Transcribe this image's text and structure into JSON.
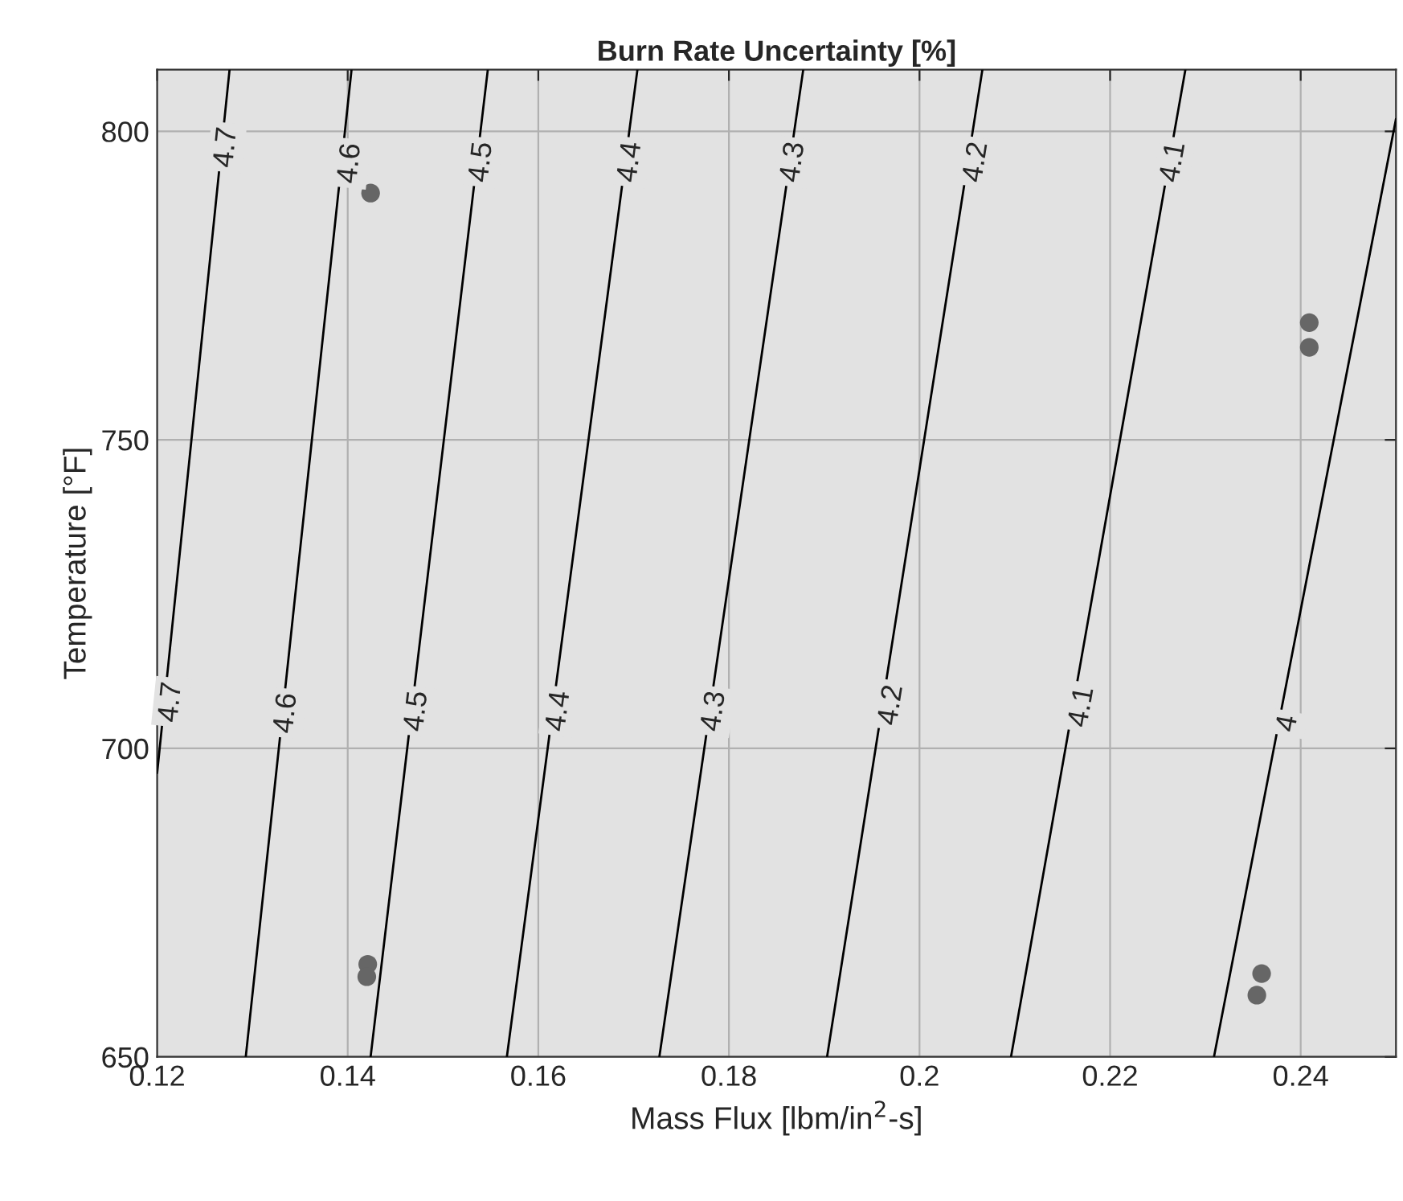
{
  "chart_data": {
    "type": "scatter",
    "title": "Burn Rate Uncertainty [%]",
    "xlabel": "Mass Flux [lbm/in$^{2}$-s]",
    "ylabel": "Temperature [°F]",
    "series": [
      {
        "type": "line",
        "color": "#000000",
        "x": [
          0.12,
          0.1276
        ],
        "values": [
          696,
          810
        ]
      },
      {
        "type": "line",
        "color": "#000000",
        "x": [
          0.1293,
          0.1404
        ],
        "values": [
          650,
          810
        ]
      },
      {
        "type": "line",
        "color": "#000000",
        "x": [
          0.1424,
          0.1547
        ],
        "values": [
          650,
          810
        ]
      },
      {
        "type": "line",
        "color": "#000000",
        "x": [
          0.1567,
          0.1704
        ],
        "values": [
          650,
          810
        ]
      },
      {
        "type": "line",
        "color": "#000000",
        "x": [
          0.1727,
          0.1878
        ],
        "values": [
          650,
          810
        ]
      },
      {
        "type": "line",
        "color": "#000000",
        "x": [
          0.1903,
          0.2066
        ],
        "values": [
          650,
          810
        ]
      },
      {
        "type": "line",
        "color": "#000000",
        "x": [
          0.2096,
          0.2279
        ],
        "values": [
          650,
          810
        ]
      },
      {
        "type": "line",
        "color": "#000000",
        "x": [
          0.2309,
          0.25
        ],
        "values": [
          650,
          802
        ]
      },
      {
        "marker": "circle",
        "color": "#666666",
        "x": [
          0.1424,
          0.1421,
          0.142,
          0.2409,
          0.2409,
          0.2359,
          0.2354
        ],
        "values": [
          790,
          665,
          663,
          769,
          765,
          663.5,
          660
        ]
      }
    ],
    "annotations": [
      {
        "text": "4.7",
        "x": 0.1273,
        "y": 797.4
      },
      {
        "text": "4.6",
        "x": 0.1403,
        "y": 794.8
      },
      {
        "text": "4.5",
        "x": 0.1541,
        "y": 795
      },
      {
        "text": "4.4",
        "x": 0.1697,
        "y": 795
      },
      {
        "text": "4.3",
        "x": 0.1868,
        "y": 795
      },
      {
        "text": "4.2",
        "x": 0.206,
        "y": 795
      },
      {
        "text": "4.1",
        "x": 0.2267,
        "y": 795
      },
      {
        "text": "4.7",
        "x": 0.1215,
        "y": 707.5
      },
      {
        "text": "4.6",
        "x": 0.1336,
        "y": 705.7
      },
      {
        "text": "4.5",
        "x": 0.1473,
        "y": 706
      },
      {
        "text": "4.4",
        "x": 0.1622,
        "y": 706
      },
      {
        "text": "4.3",
        "x": 0.1785,
        "y": 706
      },
      {
        "text": "4.2",
        "x": 0.1971,
        "y": 707
      },
      {
        "text": "4.1",
        "x": 0.2171,
        "y": 706.7
      },
      {
        "text": "4",
        "x": 0.2387,
        "y": 704
      }
    ],
    "xlim": [
      0.12,
      0.25
    ],
    "ylim": [
      650,
      810
    ],
    "xticks": [
      0.12,
      0.14,
      0.16,
      0.18,
      0.2,
      0.22,
      0.24
    ],
    "yticks": [
      650,
      700,
      750,
      800
    ],
    "grid": true,
    "line_style": "solid"
  }
}
